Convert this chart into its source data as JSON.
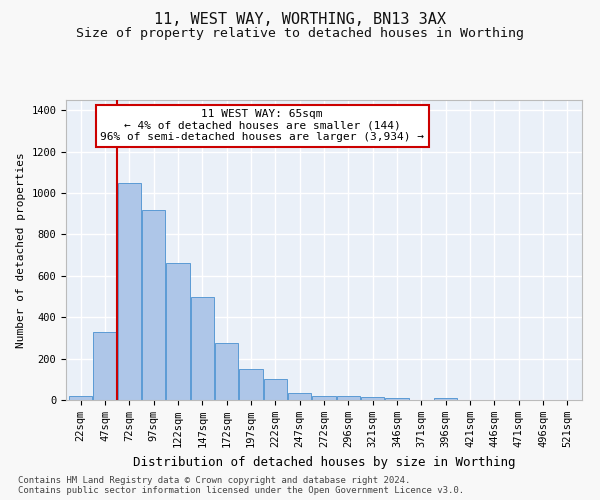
{
  "title1": "11, WEST WAY, WORTHING, BN13 3AX",
  "title2": "Size of property relative to detached houses in Worthing",
  "xlabel": "Distribution of detached houses by size in Worthing",
  "ylabel": "Number of detached properties",
  "footnote": "Contains HM Land Registry data © Crown copyright and database right 2024.\nContains public sector information licensed under the Open Government Licence v3.0.",
  "categories": [
    "22sqm",
    "47sqm",
    "72sqm",
    "97sqm",
    "122sqm",
    "147sqm",
    "172sqm",
    "197sqm",
    "222sqm",
    "247sqm",
    "272sqm",
    "296sqm",
    "321sqm",
    "346sqm",
    "371sqm",
    "396sqm",
    "421sqm",
    "446sqm",
    "471sqm",
    "496sqm",
    "521sqm"
  ],
  "values": [
    20,
    330,
    1050,
    920,
    660,
    500,
    275,
    150,
    100,
    35,
    20,
    20,
    15,
    10,
    0,
    10,
    0,
    0,
    0,
    0,
    0
  ],
  "bar_color": "#aec6e8",
  "bar_edge_color": "#5b9bd5",
  "background_color": "#eaf0f8",
  "grid_color": "#ffffff",
  "annotation_line1": "11 WEST WAY: 65sqm",
  "annotation_line2": "← 4% of detached houses are smaller (144)",
  "annotation_line3": "96% of semi-detached houses are larger (3,934) →",
  "annotation_box_color": "#ffffff",
  "annotation_box_edge_color": "#cc0000",
  "vline_color": "#cc0000",
  "ylim": [
    0,
    1450
  ],
  "yticks": [
    0,
    200,
    400,
    600,
    800,
    1000,
    1200,
    1400
  ],
  "title1_fontsize": 11,
  "title2_fontsize": 9.5,
  "xlabel_fontsize": 9,
  "ylabel_fontsize": 8,
  "tick_fontsize": 7.5,
  "annotation_fontsize": 8,
  "footnote_fontsize": 6.5
}
